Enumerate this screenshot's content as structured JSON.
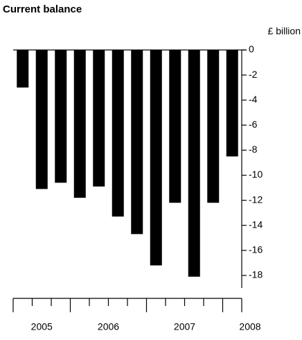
{
  "chart_data": {
    "type": "bar",
    "title": "Current balance",
    "y_axis_label": "£ billion",
    "categories": [
      "2005",
      null,
      null,
      "2006",
      null,
      null,
      null,
      "2007",
      null,
      null,
      null,
      "2008"
    ],
    "values": [
      -3.0,
      -11.1,
      -10.6,
      -11.8,
      -10.9,
      -13.3,
      -14.7,
      -17.2,
      -12.2,
      -18.1,
      -12.2,
      -8.5
    ],
    "color": "#000000",
    "ylim": [
      -19,
      0
    ],
    "yticks": [
      0,
      -2,
      -4,
      -6,
      -8,
      -10,
      -12,
      -14,
      -16,
      -18
    ],
    "grid": false
  }
}
